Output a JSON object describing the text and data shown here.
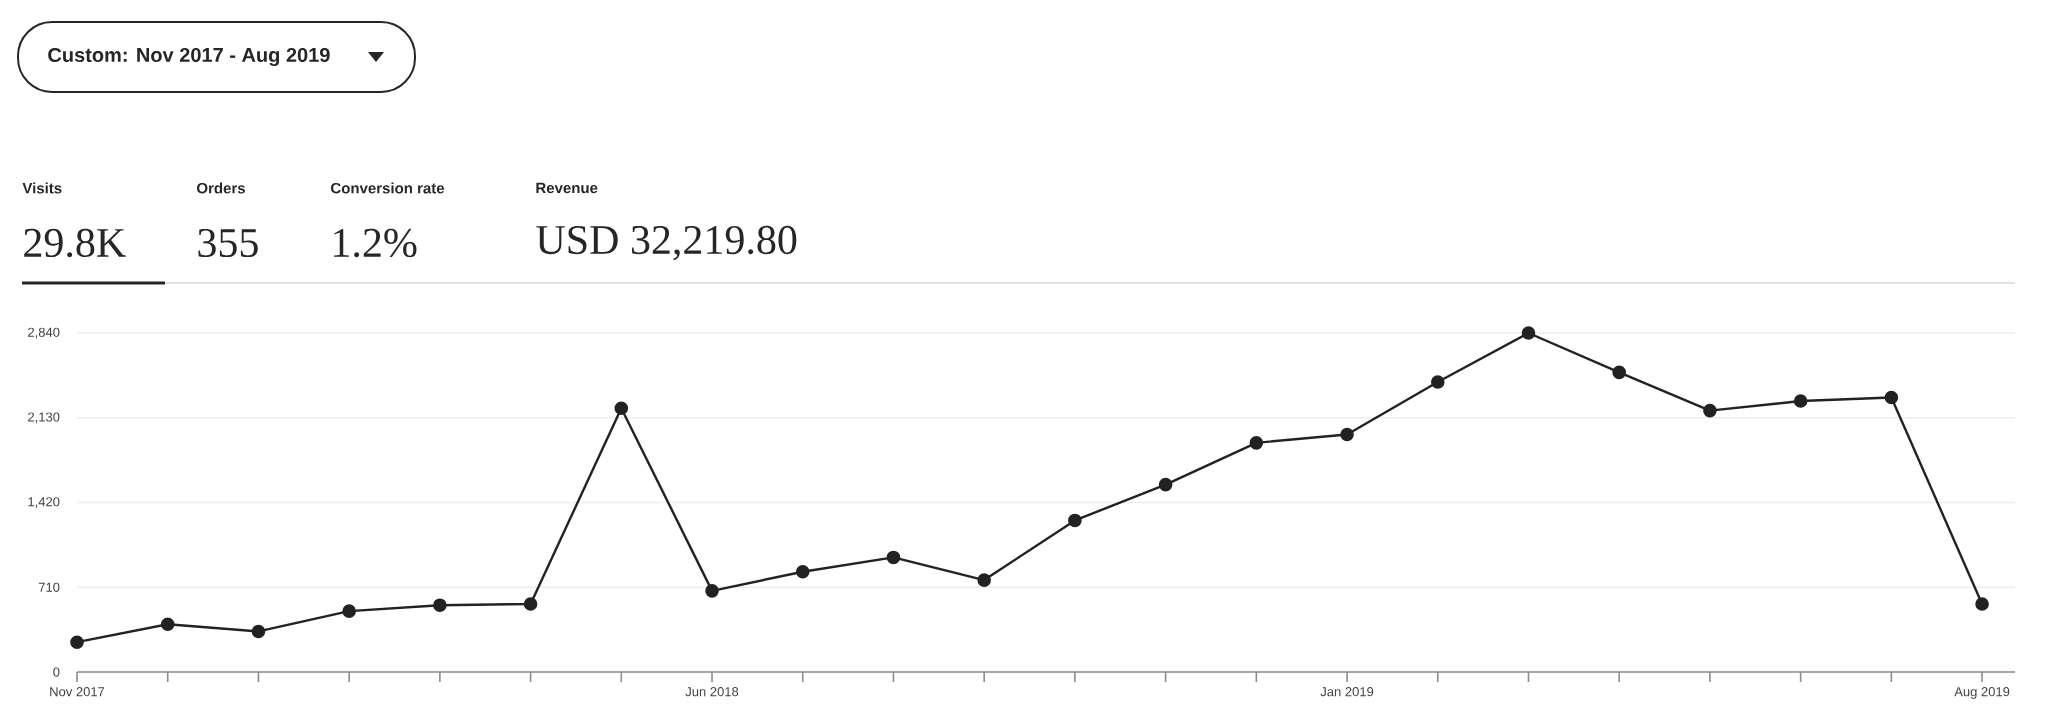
{
  "chart_data": {
    "type": "line",
    "annotations": [
      "Custom: Nov 2017 - Aug 2019",
      "Visits",
      "29.8K",
      "Orders",
      "355",
      "Conversion rate",
      "1.2%",
      "Revenue",
      "USD 32,219.80"
    ],
    "categories": [
      "Nov 2017",
      null,
      null,
      null,
      null,
      null,
      null,
      "Jun 2018",
      null,
      null,
      null,
      null,
      null,
      null,
      "Jan 2019",
      null,
      null,
      null,
      null,
      null,
      null,
      "Aug 2019"
    ],
    "series": [
      {
        "color": "#222222",
        "values": [
          250,
          400,
          340,
          510,
          560,
          570,
          2210,
          680,
          840,
          960,
          770,
          1270,
          1570,
          1920,
          1990,
          2430,
          2840,
          2510,
          2190,
          2270,
          2300,
          570
        ]
      }
    ],
    "ylim": [
      0,
      2840
    ],
    "yticks": [
      0,
      710,
      {
        "value": 1420,
        "label": "1,420"
      },
      {
        "value": 2130,
        "label": "2,130"
      },
      {
        "value": 2840,
        "label": "2,840"
      }
    ],
    "grid": "y",
    "marker": "circle",
    "line_style": "solid"
  }
}
